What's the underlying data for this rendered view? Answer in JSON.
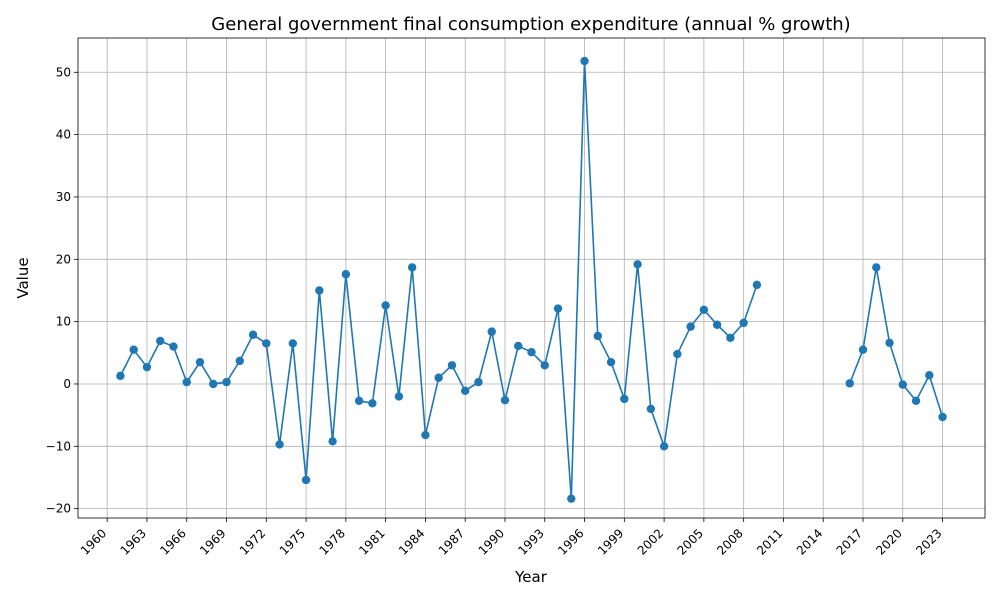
{
  "chart_data": {
    "type": "line",
    "title": "General government final consumption expenditure (annual % growth)",
    "xlabel": "Year",
    "ylabel": "Value",
    "xlim": [
      1957.8,
      2026.2
    ],
    "ylim": [
      -21.5,
      55.5
    ],
    "x_ticks": [
      1960,
      1963,
      1966,
      1969,
      1972,
      1975,
      1978,
      1981,
      1984,
      1987,
      1990,
      1993,
      1996,
      1999,
      2002,
      2005,
      2008,
      2011,
      2014,
      2017,
      2020,
      2023
    ],
    "y_ticks": [
      -20,
      -10,
      0,
      10,
      20,
      30,
      40,
      50
    ],
    "grid": true,
    "color": "#1f77b4",
    "series": [
      {
        "name": "Value",
        "points": [
          [
            1961,
            1.3
          ],
          [
            1962,
            5.5
          ],
          [
            1963,
            2.7
          ],
          [
            1964,
            6.9
          ],
          [
            1965,
            6.0
          ],
          [
            1966,
            0.3
          ],
          [
            1967,
            3.5
          ],
          [
            1968,
            0.0
          ],
          [
            1969,
            0.3
          ],
          [
            1970,
            3.7
          ],
          [
            1971,
            7.9
          ],
          [
            1972,
            6.5
          ],
          [
            1973,
            -9.7
          ],
          [
            1974,
            6.5
          ],
          [
            1975,
            -15.4
          ],
          [
            1976,
            15.0
          ],
          [
            1977,
            -9.2
          ],
          [
            1978,
            17.6
          ],
          [
            1979,
            -2.7
          ],
          [
            1980,
            -3.1
          ],
          [
            1981,
            12.6
          ],
          [
            1982,
            -2.0
          ],
          [
            1983,
            18.7
          ],
          [
            1984,
            -8.2
          ],
          [
            1985,
            1.0
          ],
          [
            1986,
            3.0
          ],
          [
            1987,
            -1.1
          ],
          [
            1988,
            0.3
          ],
          [
            1989,
            8.4
          ],
          [
            1990,
            -2.6
          ],
          [
            1991,
            6.1
          ],
          [
            1992,
            5.1
          ],
          [
            1993,
            3.0
          ],
          [
            1994,
            12.1
          ],
          [
            1995,
            -18.4
          ],
          [
            1996,
            51.8
          ],
          [
            1997,
            7.7
          ],
          [
            1998,
            3.5
          ],
          [
            1999,
            -2.4
          ],
          [
            2000,
            19.2
          ],
          [
            2001,
            -4.0
          ],
          [
            2002,
            -10.0
          ],
          [
            2003,
            4.8
          ],
          [
            2004,
            9.2
          ],
          [
            2005,
            11.9
          ],
          [
            2006,
            9.5
          ],
          [
            2007,
            7.4
          ],
          [
            2008,
            9.8
          ],
          [
            2009,
            15.9
          ],
          [
            2016,
            0.1
          ],
          [
            2017,
            5.5
          ],
          [
            2018,
            18.7
          ],
          [
            2019,
            6.6
          ],
          [
            2020,
            -0.1
          ],
          [
            2021,
            -2.7
          ],
          [
            2022,
            1.4
          ],
          [
            2023,
            -5.3
          ]
        ]
      }
    ]
  }
}
